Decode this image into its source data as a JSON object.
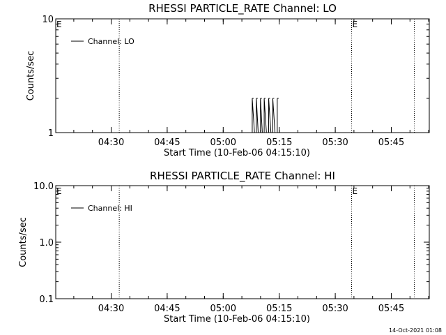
{
  "chart_data": [
    {
      "type": "line",
      "title": "RHESSI PARTICLE_RATE Channel: LO",
      "xlabel": "Start Time (10-Feb-06 04:15:10)",
      "ylabel": "Counts/sec",
      "y_scale": "log",
      "ylim": [
        1,
        10
      ],
      "ytick_labels": [
        "1",
        "10"
      ],
      "ytick_values": [
        1,
        10
      ],
      "x_range_minutes": [
        0,
        100
      ],
      "xtick_labels": [
        "04:30",
        "04:45",
        "05:00",
        "05:15",
        "05:30",
        "05:45"
      ],
      "xtick_minutes": [
        14.83,
        29.83,
        44.83,
        59.83,
        74.83,
        89.83
      ],
      "legend": {
        "entries": [
          "Channel: LO"
        ],
        "placement": "top-left"
      },
      "vlines_minutes": [
        17.0,
        79.2,
        96.0
      ],
      "markers": [
        {
          "label": "E",
          "x_minutes": 0
        },
        {
          "label": "E",
          "x_minutes": 79.2
        }
      ],
      "series": [
        {
          "name": "Channel: LO",
          "x_minutes": [
            52.0,
            52.6,
            53.2,
            53.7,
            54.2,
            54.8,
            55.3,
            55.8,
            56.4,
            57.0,
            57.6,
            58.1,
            58.7,
            59.3
          ],
          "values": [
            1,
            2,
            1,
            2,
            1,
            2,
            1,
            2,
            1,
            2,
            1,
            2,
            1,
            2
          ]
        }
      ]
    },
    {
      "type": "line",
      "title": "RHESSI PARTICLE_RATE Channel: HI",
      "xlabel": "Start Time (10-Feb-06 04:15:10)",
      "ylabel": "Counts/sec",
      "y_scale": "log",
      "ylim": [
        0.1,
        10
      ],
      "ytick_labels": [
        "0.1",
        "1.0",
        "10.0"
      ],
      "ytick_values": [
        0.1,
        1,
        10
      ],
      "x_range_minutes": [
        0,
        100
      ],
      "xtick_labels": [
        "04:30",
        "04:45",
        "05:00",
        "05:15",
        "05:30",
        "05:45"
      ],
      "xtick_minutes": [
        14.83,
        29.83,
        44.83,
        59.83,
        74.83,
        89.83
      ],
      "legend": {
        "entries": [
          "Channel: HI"
        ],
        "placement": "top-left"
      },
      "vlines_minutes": [
        17.0,
        79.2,
        96.0
      ],
      "markers": [
        {
          "label": "E",
          "x_minutes": 0
        },
        {
          "label": "E",
          "x_minutes": 79.2
        }
      ],
      "series": [
        {
          "name": "Channel: HI",
          "x_minutes": [],
          "values": []
        }
      ]
    }
  ],
  "footer": {
    "timestamp": "14-Oct-2021 01:08"
  }
}
